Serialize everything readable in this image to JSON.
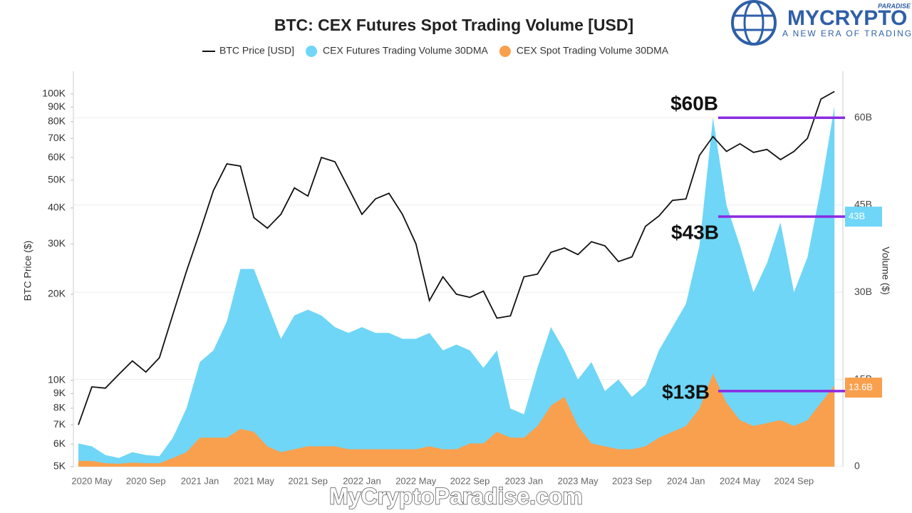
{
  "chart_data": {
    "type": "line-area",
    "title": "BTC: CEX Futures Spot Trading Volume [USD]",
    "y_label": "BTC Price ($)",
    "y2_label": "Volume ($)",
    "categories": [
      null,
      "2020 May",
      null,
      null,
      null,
      "2020 Sep",
      null,
      null,
      null,
      "2021 Jan",
      null,
      null,
      null,
      "2021 May",
      null,
      null,
      null,
      "2021 Sep",
      null,
      null,
      null,
      "2022 Jan",
      null,
      null,
      null,
      "2022 May",
      null,
      null,
      null,
      "2022 Sep",
      null,
      null,
      null,
      "2023 Jan",
      null,
      null,
      null,
      "2023 May",
      null,
      null,
      null,
      "2023 Sep",
      null,
      null,
      null,
      "2024 Jan",
      null,
      null,
      null,
      "2024 May",
      null,
      null,
      null,
      "2024 Sep",
      null,
      null,
      null
    ],
    "series": [
      {
        "name": "BTC Price [USD]",
        "color": "#111111",
        "axis": "y",
        "values": [
          7000,
          9500,
          9400,
          10500,
          11700,
          10700,
          12000,
          17000,
          24000,
          33000,
          46000,
          57000,
          56000,
          37000,
          34000,
          38000,
          47000,
          44000,
          60000,
          58000,
          47000,
          38000,
          43000,
          45000,
          38000,
          30000,
          19000,
          23000,
          20000,
          19500,
          20500,
          16500,
          16800,
          23000,
          23500,
          28000,
          29000,
          27500,
          30500,
          29500,
          26000,
          27000,
          34500,
          37500,
          42500,
          43000,
          61000,
          71000,
          63000,
          67000,
          62500,
          64000,
          59000,
          63000,
          70000,
          96000,
          102000
        ]
      },
      {
        "name": "CEX Futures Trading Volume 30DMA",
        "color": "#6fd6f7",
        "axis": "y2",
        "values": [
          4,
          3.5,
          2,
          1.5,
          2.5,
          2,
          1.8,
          5,
          10,
          18,
          20,
          25,
          34,
          34,
          28,
          22,
          26,
          27,
          26,
          24,
          23,
          24,
          23,
          23,
          22,
          22,
          23,
          20,
          21,
          20,
          17,
          20,
          10,
          9,
          17,
          24,
          20,
          15,
          18,
          13,
          15,
          12,
          14,
          20,
          24,
          28,
          38,
          60,
          45,
          38,
          30,
          35,
          42,
          30,
          36,
          48,
          62
        ]
      },
      {
        "name": "CEX Spot Trading Volume 30DMA",
        "color": "#f9a04e",
        "axis": "y2",
        "values": [
          1,
          1,
          0.6,
          0.5,
          0.7,
          0.6,
          0.6,
          1.5,
          2.5,
          5,
          5,
          5,
          6.5,
          6,
          3.5,
          2.5,
          3,
          3.5,
          3.5,
          3.5,
          3,
          3,
          3,
          3,
          3,
          3,
          3.5,
          3,
          3,
          4,
          4,
          6,
          5,
          5,
          7,
          10.5,
          12,
          7,
          4,
          3.5,
          3,
          3,
          3.5,
          5,
          6,
          7,
          10,
          16,
          11,
          8,
          7,
          7.5,
          8,
          7,
          8,
          11,
          14
        ]
      }
    ],
    "log_y": true,
    "ylim": [
      5000,
      120000
    ],
    "yticks": [
      {
        "value": 5000,
        "label": "5K"
      },
      {
        "value": 6000,
        "label": "6K"
      },
      {
        "value": 7000,
        "label": "7K"
      },
      {
        "value": 8000,
        "label": "8K"
      },
      {
        "value": 9000,
        "label": "9K"
      },
      {
        "value": 10000,
        "label": "10K"
      },
      {
        "value": 20000,
        "label": "20K"
      },
      {
        "value": 30000,
        "label": "30K"
      },
      {
        "value": 40000,
        "label": "40K"
      },
      {
        "value": 50000,
        "label": "50K"
      },
      {
        "value": 60000,
        "label": "60K"
      },
      {
        "value": 70000,
        "label": "70K"
      },
      {
        "value": 80000,
        "label": "80K"
      },
      {
        "value": 90000,
        "label": "90K"
      },
      {
        "value": 100000,
        "label": "100K"
      }
    ],
    "y2lim": [
      0,
      68
    ],
    "y2ticks": [
      0,
      {
        "value": 15,
        "label": "15B"
      },
      {
        "value": 30,
        "label": "30B"
      },
      {
        "value": 45,
        "label": "45B"
      },
      {
        "value": 60,
        "label": "60B"
      }
    ],
    "grid": true,
    "legend": "top",
    "annotations": [
      {
        "text": "$60B",
        "value": 60
      },
      {
        "text": "$43B",
        "value": 43
      },
      {
        "text": "$13B",
        "value": 13
      }
    ],
    "axis_markers": [
      {
        "value": 43,
        "label": "43B",
        "color": "#6fd6f7"
      },
      {
        "value": 13.6,
        "label": "13.6B",
        "color": "#f9a04e"
      }
    ]
  },
  "branding": {
    "name": "MYCRYPTO",
    "tag": "PARADISE",
    "slogan": "A NEW ERA OF TRADING",
    "watermark": "MyCryptoParadise.com"
  }
}
